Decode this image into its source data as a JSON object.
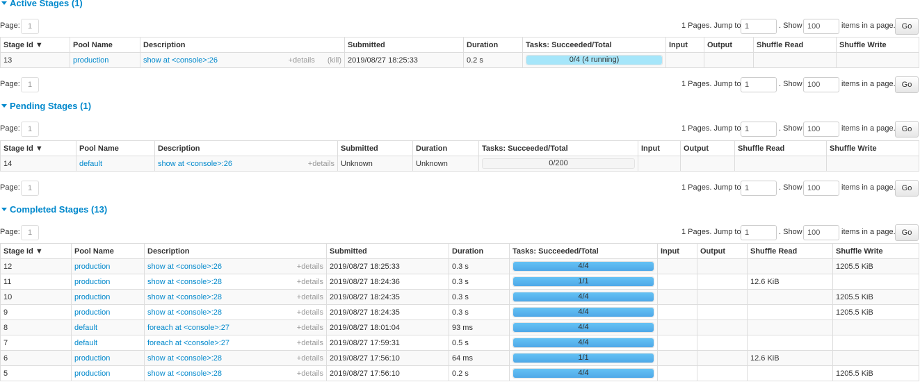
{
  "pager": {
    "page_label": "Page:",
    "page": "1",
    "pages_text": "1 Pages. Jump to",
    "jump_value": "1",
    "show_text": ". Show",
    "show_value": "100",
    "items_text": "items in a page.",
    "go": "Go"
  },
  "headers": [
    "Stage Id ▼",
    "Pool Name",
    "Description",
    "Submitted",
    "Duration",
    "Tasks: Succeeded/Total",
    "Input",
    "Output",
    "Shuffle Read",
    "Shuffle Write"
  ],
  "details_label": "+details",
  "kill_label": "(kill)",
  "colors": {
    "link": "#0088cc",
    "bar_complete": "#5ab4ee",
    "bar_running": "#a6e6fa"
  },
  "sections": [
    {
      "title": "Active Stages (1)",
      "rows": [
        {
          "id": "13",
          "pool": "production",
          "desc": "show at <console>:26",
          "kill": true,
          "submitted": "2019/08/27 18:25:33",
          "duration": "0.2 s",
          "succeeded": 0,
          "total": 4,
          "running": 4,
          "tasks": "0/4 (4 running)",
          "input": "",
          "output": "",
          "shuffle_read": "",
          "shuffle_write": ""
        }
      ]
    },
    {
      "title": "Pending Stages (1)",
      "rows": [
        {
          "id": "14",
          "pool": "default",
          "desc": "show at <console>:26",
          "submitted": "Unknown",
          "duration": "Unknown",
          "succeeded": 0,
          "total": 200,
          "running": 0,
          "tasks": "0/200",
          "input": "",
          "output": "",
          "shuffle_read": "",
          "shuffle_write": ""
        }
      ]
    },
    {
      "title": "Completed Stages (13)",
      "rows": [
        {
          "id": "12",
          "pool": "production",
          "desc": "show at <console>:26",
          "submitted": "2019/08/27 18:25:33",
          "duration": "0.3 s",
          "succeeded": 4,
          "total": 4,
          "running": 0,
          "tasks": "4/4",
          "input": "",
          "output": "",
          "shuffle_read": "",
          "shuffle_write": "1205.5 KiB"
        },
        {
          "id": "11",
          "pool": "production",
          "desc": "show at <console>:28",
          "submitted": "2019/08/27 18:24:36",
          "duration": "0.3 s",
          "succeeded": 1,
          "total": 1,
          "running": 0,
          "tasks": "1/1",
          "input": "",
          "output": "",
          "shuffle_read": "12.6 KiB",
          "shuffle_write": ""
        },
        {
          "id": "10",
          "pool": "production",
          "desc": "show at <console>:28",
          "submitted": "2019/08/27 18:24:35",
          "duration": "0.3 s",
          "succeeded": 4,
          "total": 4,
          "running": 0,
          "tasks": "4/4",
          "input": "",
          "output": "",
          "shuffle_read": "",
          "shuffle_write": "1205.5 KiB"
        },
        {
          "id": "9",
          "pool": "production",
          "desc": "show at <console>:28",
          "submitted": "2019/08/27 18:24:35",
          "duration": "0.3 s",
          "succeeded": 4,
          "total": 4,
          "running": 0,
          "tasks": "4/4",
          "input": "",
          "output": "",
          "shuffle_read": "",
          "shuffle_write": "1205.5 KiB"
        },
        {
          "id": "8",
          "pool": "default",
          "desc": "foreach at <console>:27",
          "submitted": "2019/08/27 18:01:04",
          "duration": "93 ms",
          "succeeded": 4,
          "total": 4,
          "running": 0,
          "tasks": "4/4",
          "input": "",
          "output": "",
          "shuffle_read": "",
          "shuffle_write": ""
        },
        {
          "id": "7",
          "pool": "default",
          "desc": "foreach at <console>:27",
          "submitted": "2019/08/27 17:59:31",
          "duration": "0.5 s",
          "succeeded": 4,
          "total": 4,
          "running": 0,
          "tasks": "4/4",
          "input": "",
          "output": "",
          "shuffle_read": "",
          "shuffle_write": ""
        },
        {
          "id": "6",
          "pool": "production",
          "desc": "show at <console>:28",
          "submitted": "2019/08/27 17:56:10",
          "duration": "64 ms",
          "succeeded": 1,
          "total": 1,
          "running": 0,
          "tasks": "1/1",
          "input": "",
          "output": "",
          "shuffle_read": "12.6 KiB",
          "shuffle_write": ""
        },
        {
          "id": "5",
          "pool": "production",
          "desc": "show at <console>:28",
          "submitted": "2019/08/27 17:56:10",
          "duration": "0.2 s",
          "succeeded": 4,
          "total": 4,
          "running": 0,
          "tasks": "4/4",
          "input": "",
          "output": "",
          "shuffle_read": "",
          "shuffle_write": "1205.5 KiB"
        }
      ]
    }
  ]
}
